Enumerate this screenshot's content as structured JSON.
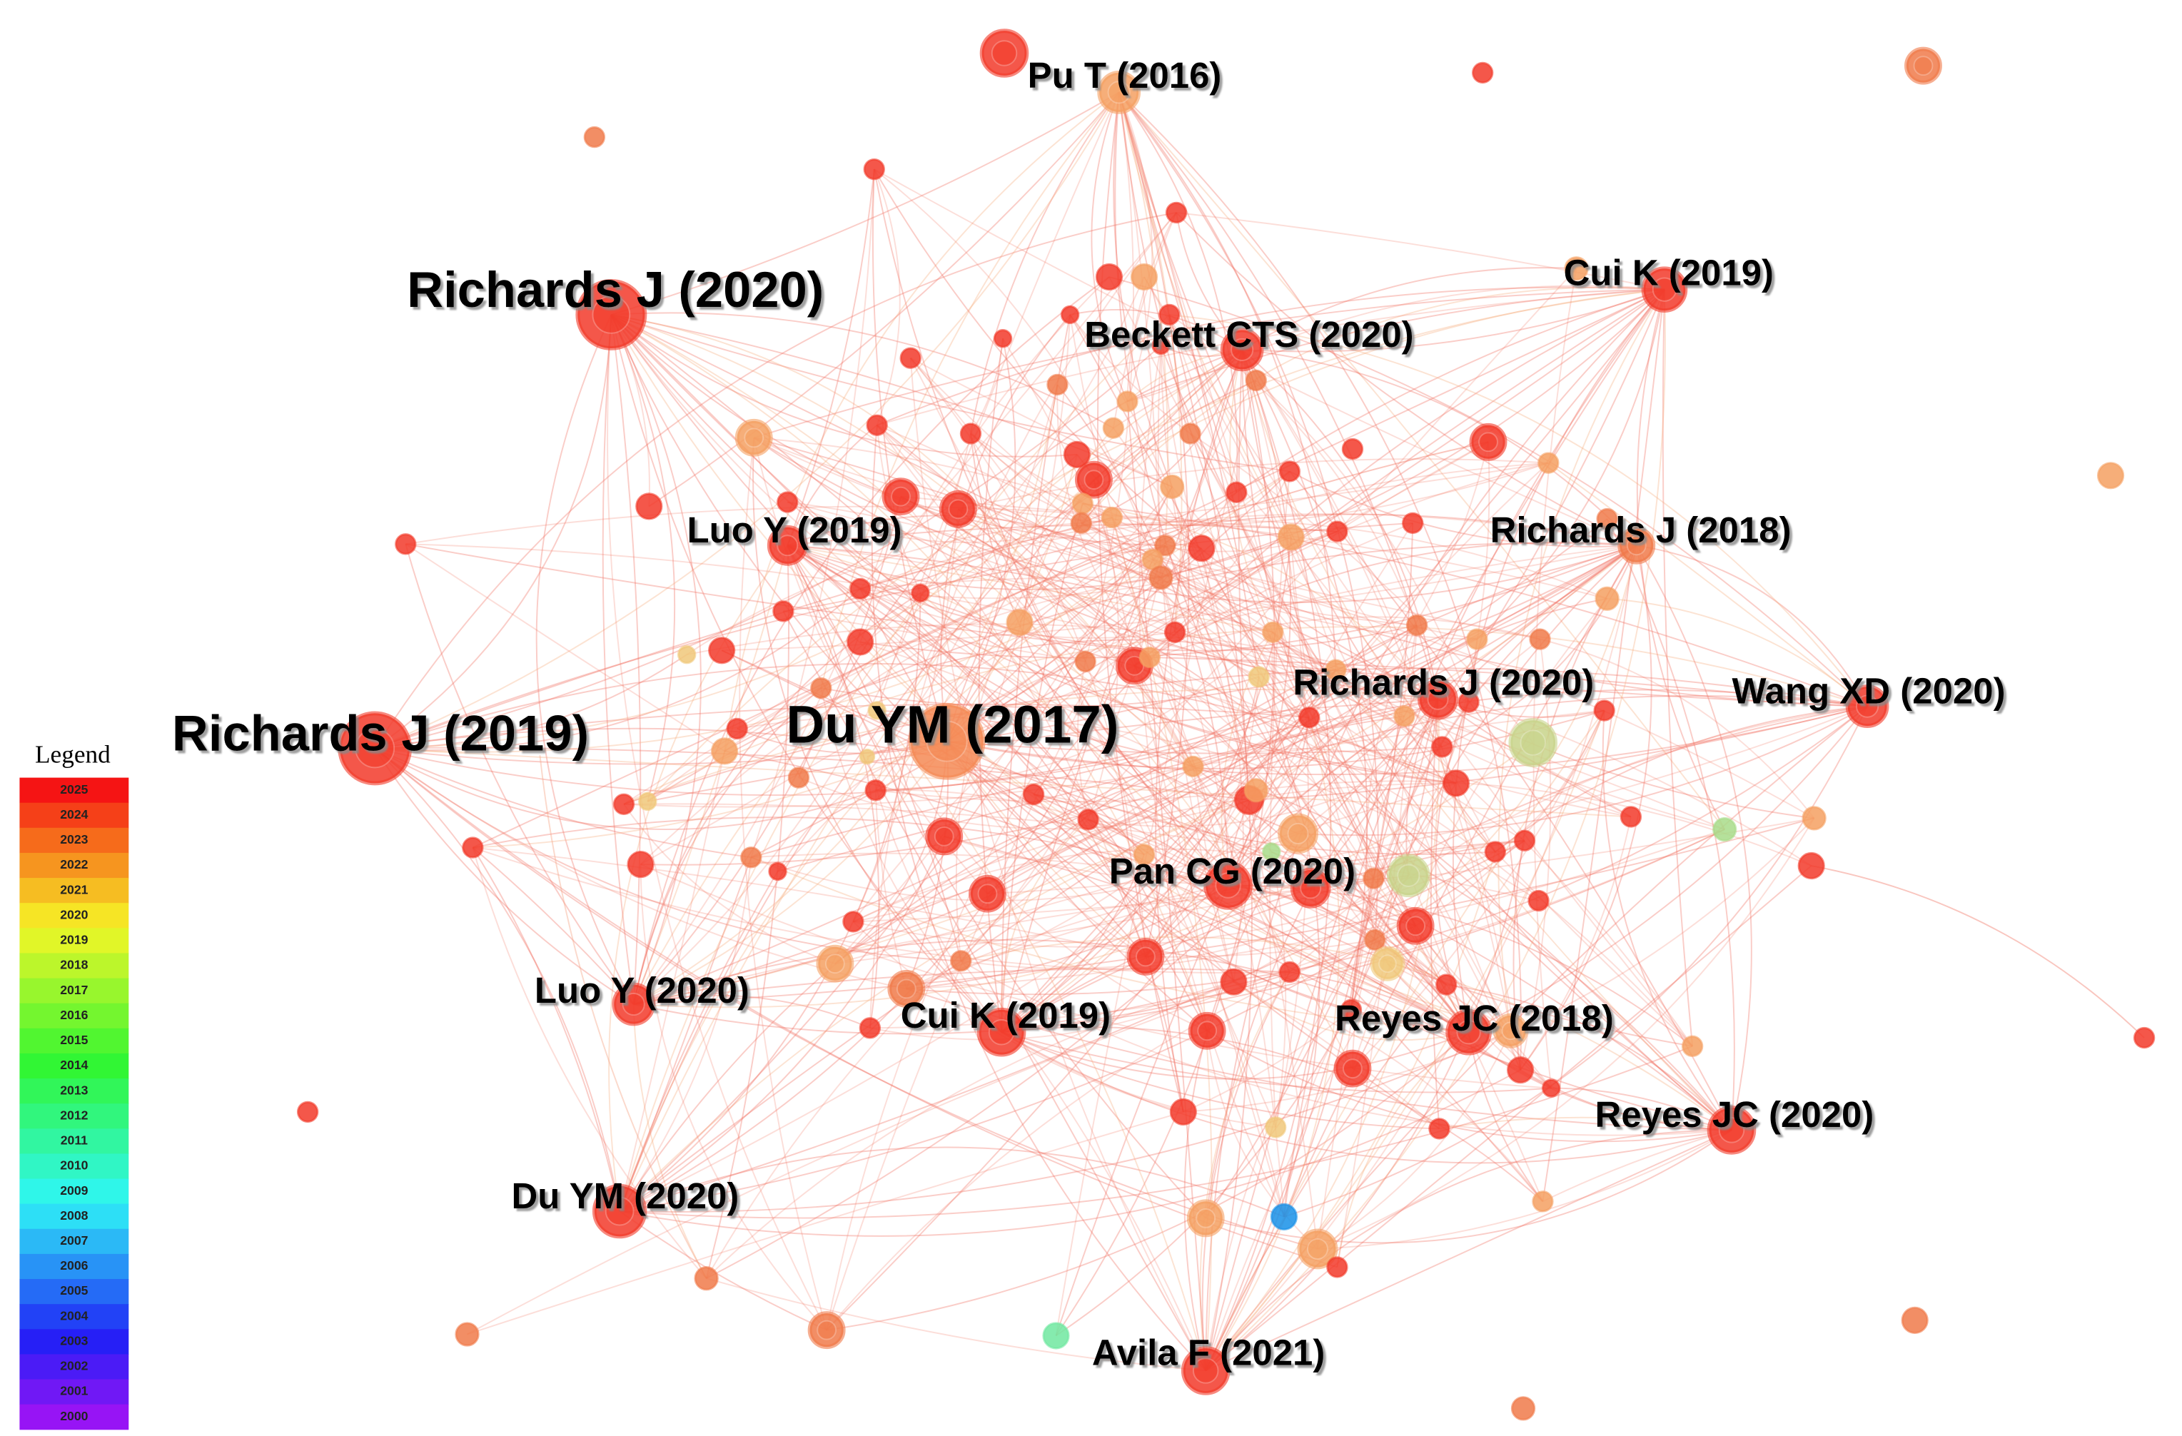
{
  "nodes": [
    {
      "label": "Pu T (2016)"
    },
    {
      "label": "Richards J (2020)"
    },
    {
      "label": "Cui K (2019)"
    },
    {
      "label": "Beckett CTS (2020)"
    },
    {
      "label": "Luo Y (2019)"
    },
    {
      "label": "Richards J (2018)"
    },
    {
      "label": "Richards J (2019)"
    },
    {
      "label": "Du YM (2017)"
    },
    {
      "label": "Richards J (2020)"
    },
    {
      "label": "Wang XD (2020)"
    },
    {
      "label": "Pan CG (2020)"
    },
    {
      "label": "Luo Y (2020)"
    },
    {
      "label": "Cui K (2019)"
    },
    {
      "label": "Reyes JC (2018)"
    },
    {
      "label": "Reyes JC (2020)"
    },
    {
      "label": "Du YM (2020)"
    },
    {
      "label": "Avila F (2021)"
    }
  ],
  "legend": {
    "title": "Legend",
    "years": [
      2025,
      2024,
      2023,
      2022,
      2021,
      2020,
      2019,
      2018,
      2017,
      2016,
      2015,
      2014,
      2013,
      2012,
      2011,
      2010,
      2009,
      2008,
      2007,
      2006,
      2005,
      2004,
      2003,
      2002,
      2001,
      2000
    ]
  }
}
